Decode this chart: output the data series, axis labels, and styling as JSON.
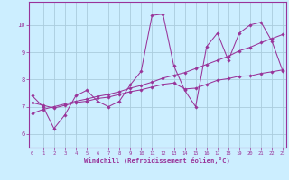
{
  "xlabel": "Windchill (Refroidissement éolien,°C)",
  "ylabel": "",
  "bg_color": "#cceeff",
  "line_color": "#993399",
  "grid_color": "#aaccdd",
  "x_ticks": [
    0,
    1,
    2,
    3,
    4,
    5,
    6,
    7,
    8,
    9,
    10,
    11,
    12,
    13,
    14,
    15,
    16,
    17,
    18,
    19,
    20,
    21,
    22,
    23
  ],
  "y_ticks": [
    6,
    7,
    8,
    9,
    10
  ],
  "xlim": [
    -0.3,
    23.3
  ],
  "ylim": [
    5.5,
    10.85
  ],
  "series1_x": [
    0,
    1,
    2,
    3,
    4,
    5,
    6,
    7,
    8,
    9,
    10,
    11,
    12,
    13,
    14,
    15,
    16,
    17,
    18,
    19,
    20,
    21,
    22,
    23
  ],
  "series1_y": [
    7.4,
    7.0,
    6.2,
    6.7,
    7.4,
    7.6,
    7.2,
    7.0,
    7.2,
    7.8,
    8.3,
    10.35,
    10.4,
    8.5,
    7.6,
    7.0,
    9.2,
    9.7,
    8.7,
    9.7,
    10.0,
    10.1,
    9.4,
    8.3
  ],
  "series2_x": [
    0,
    1,
    2,
    3,
    4,
    5,
    6,
    7,
    8,
    9,
    10,
    11,
    12,
    13,
    14,
    15,
    16,
    17,
    18,
    19,
    20,
    21,
    22,
    23
  ],
  "series2_y": [
    7.15,
    7.05,
    6.95,
    7.05,
    7.15,
    7.2,
    7.3,
    7.35,
    7.45,
    7.55,
    7.62,
    7.72,
    7.82,
    7.87,
    7.65,
    7.68,
    7.82,
    7.97,
    8.03,
    8.12,
    8.13,
    8.22,
    8.28,
    8.35
  ],
  "series3_x": [
    0,
    1,
    2,
    3,
    4,
    5,
    6,
    7,
    8,
    9,
    10,
    11,
    12,
    13,
    14,
    15,
    16,
    17,
    18,
    19,
    20,
    21,
    22,
    23
  ],
  "series3_y": [
    6.75,
    6.9,
    7.0,
    7.1,
    7.2,
    7.28,
    7.38,
    7.45,
    7.55,
    7.68,
    7.78,
    7.9,
    8.05,
    8.15,
    8.25,
    8.4,
    8.55,
    8.7,
    8.85,
    9.05,
    9.18,
    9.35,
    9.5,
    9.65
  ]
}
